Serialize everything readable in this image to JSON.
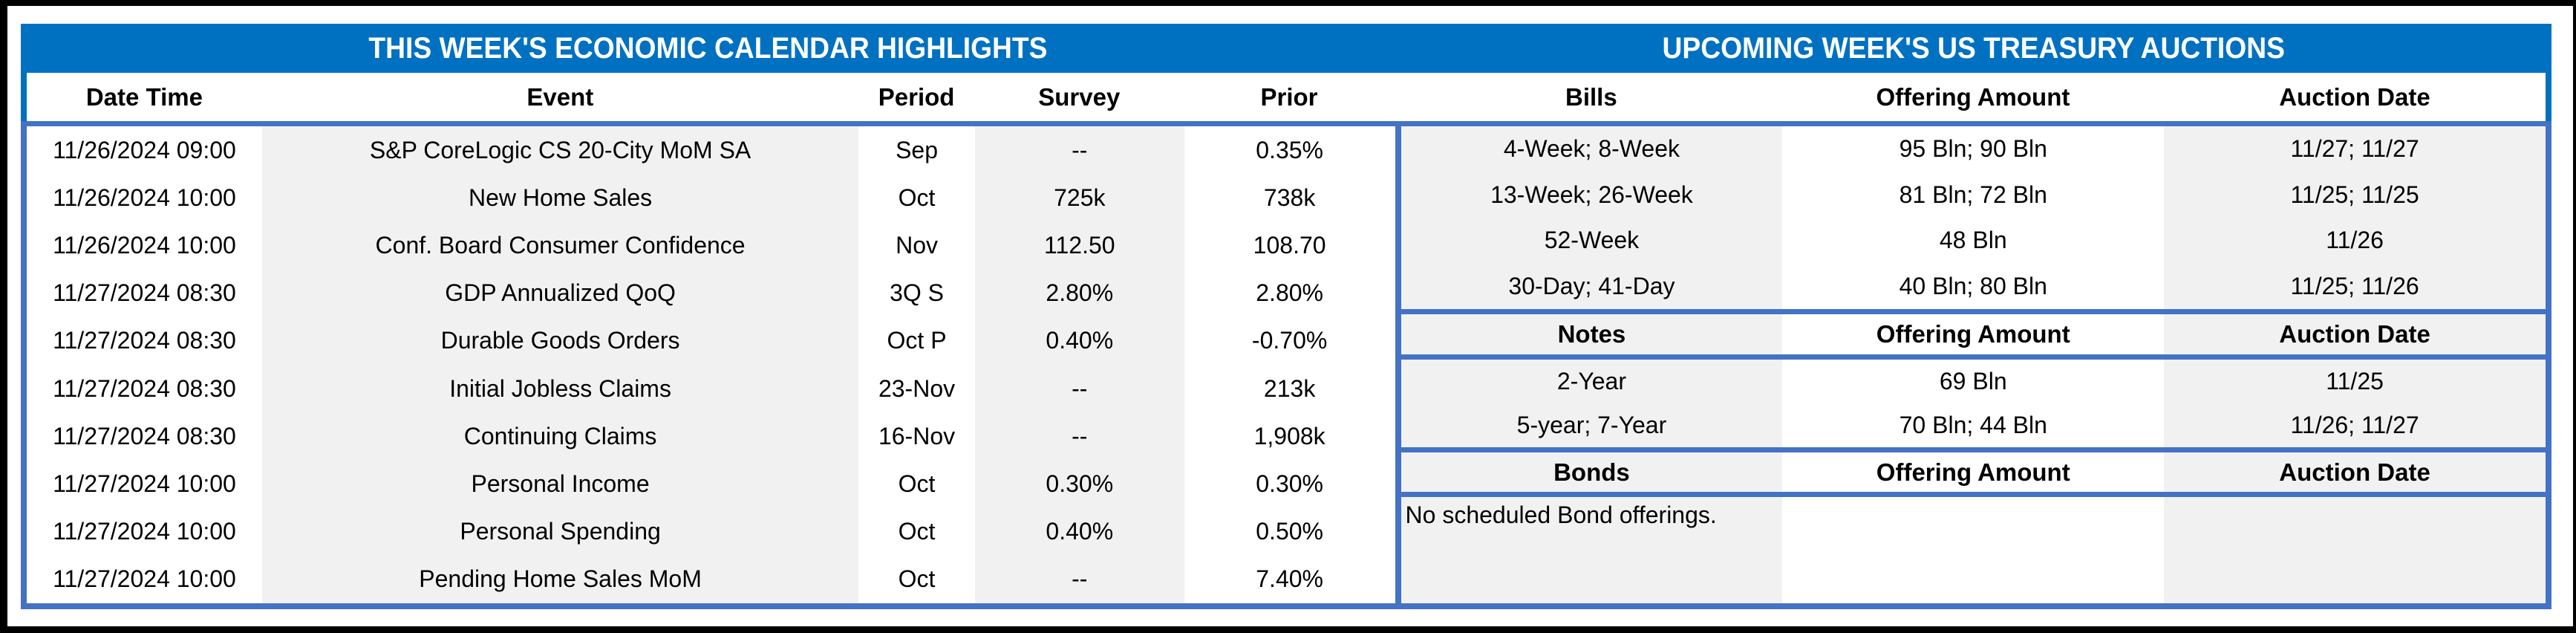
{
  "colors": {
    "title_bar_blue": "#0071C1",
    "table_border_blue": "#4472C4",
    "shaded_cell_gray": "#F1F1F1",
    "frame_black": "#000000"
  },
  "left_table": {
    "title": "THIS WEEK'S ECONOMIC CALENDAR HIGHLIGHTS",
    "columns": [
      "Date Time",
      "Event",
      "Period",
      "Survey",
      "Prior"
    ],
    "rows": [
      [
        "11/26/2024 09:00",
        "S&P CoreLogic CS 20-City MoM SA",
        "Sep",
        "--",
        "0.35%"
      ],
      [
        "11/26/2024 10:00",
        "New Home Sales",
        "Oct",
        "725k",
        "738k"
      ],
      [
        "11/26/2024 10:00",
        "Conf. Board Consumer Confidence",
        "Nov",
        "112.50",
        "108.70"
      ],
      [
        "11/27/2024 08:30",
        "GDP Annualized QoQ",
        "3Q S",
        "2.80%",
        "2.80%"
      ],
      [
        "11/27/2024 08:30",
        "Durable Goods Orders",
        "Oct P",
        "0.40%",
        "-0.70%"
      ],
      [
        "11/27/2024 08:30",
        "Initial Jobless Claims",
        "23-Nov",
        "--",
        "213k"
      ],
      [
        "11/27/2024 08:30",
        "Continuing Claims",
        "16-Nov",
        "--",
        "1,908k"
      ],
      [
        "11/27/2024 10:00",
        "Personal Income",
        "Oct",
        "0.30%",
        "0.30%"
      ],
      [
        "11/27/2024 10:00",
        "Personal Spending",
        "Oct",
        "0.40%",
        "0.50%"
      ],
      [
        "11/27/2024 10:00",
        "Pending Home Sales MoM",
        "Oct",
        "--",
        "7.40%"
      ]
    ]
  },
  "right_table": {
    "title": "UPCOMING WEEK'S US TREASURY AUCTIONS",
    "sections": [
      {
        "header": [
          "Bills",
          "Offering Amount",
          "Auction Date"
        ],
        "rows": [
          [
            "4-Week; 8-Week",
            "95 Bln; 90 Bln",
            "11/27; 11/27"
          ],
          [
            "13-Week; 26-Week",
            "81 Bln; 72 Bln",
            "11/25; 11/25"
          ],
          [
            "52-Week",
            "48 Bln",
            "11/26"
          ],
          [
            "30-Day; 41-Day",
            "40 Bln; 80 Bln",
            "11/25; 11/26"
          ]
        ]
      },
      {
        "header": [
          "Notes",
          "Offering Amount",
          "Auction Date"
        ],
        "rows": [
          [
            "2-Year",
            "69 Bln",
            "11/25"
          ],
          [
            "5-year; 7-Year",
            "70 Bln; 44 Bln",
            "11/26; 11/27"
          ]
        ]
      },
      {
        "header": [
          "Bonds",
          "Offering Amount",
          "Auction Date"
        ],
        "rows": [
          [
            "No scheduled Bond offerings.",
            "",
            ""
          ]
        ]
      }
    ]
  }
}
